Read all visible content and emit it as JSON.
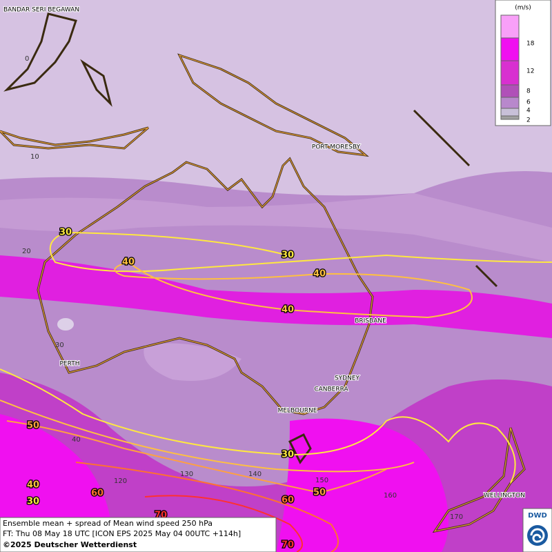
{
  "cities": [
    "BANDAR SERI BEGAWAN",
    "PORT MORESBY",
    "BRISBANE",
    "PERTH",
    "SYDNEY",
    "CANBERRA",
    "MELBOURNE",
    "WELLINGTON"
  ],
  "grid_labels": {
    "latitudes": [
      0,
      10,
      20,
      30,
      40
    ],
    "longitudes": [
      120,
      130,
      140,
      150,
      160,
      170
    ]
  },
  "contour_labels": [
    30,
    30,
    40,
    40,
    40,
    50,
    30,
    40,
    30,
    60,
    60,
    50,
    70,
    70
  ],
  "legend": {
    "unit": "(m/s)",
    "ticks": [
      18,
      12,
      8,
      6,
      4,
      2
    ]
  },
  "footer": [
    "Ensemble mean + spread of Mean wind speed 250 hPa",
    "FT: Thu 08 May 18 UTC [ICON EPS 2025 May 04 00UTC +114h]",
    "©2025 Deutscher Wetterdienst"
  ],
  "logo": "DWD"
}
